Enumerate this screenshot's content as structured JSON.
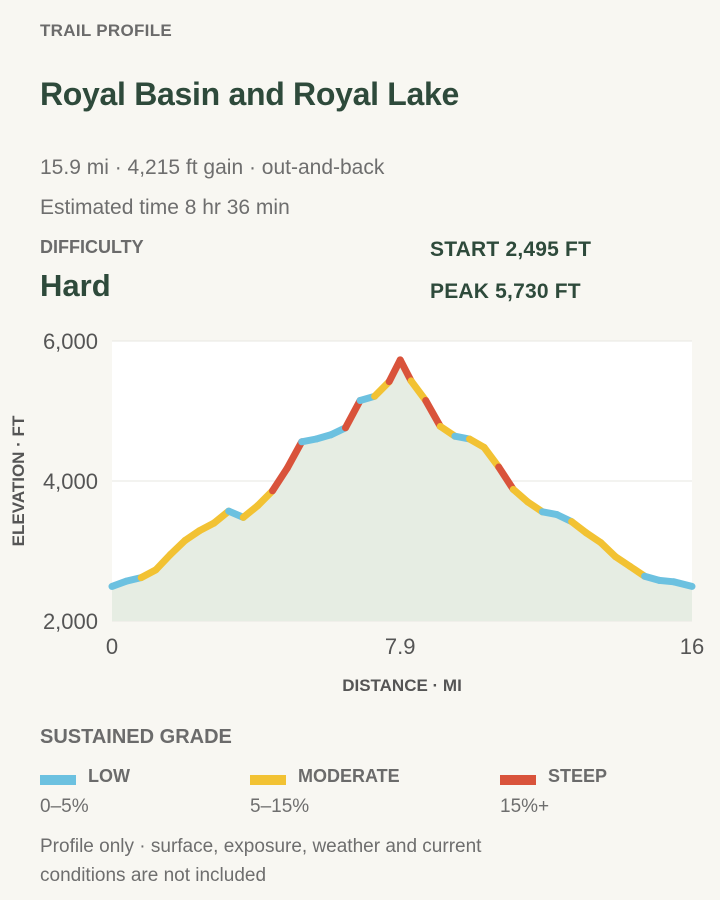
{
  "header": {
    "eyebrow": "TRAIL PROFILE",
    "title": "Royal Basin and Royal Lake",
    "summary": "15.9 mi · 4,215 ft gain · out-and-back",
    "time": "Estimated time 8 hr 36 min"
  },
  "difficulty": {
    "label": "DIFFICULTY",
    "value": "Hard"
  },
  "stats": {
    "start": "START 2,495 FT",
    "peak": "PEAK 5,730 FT"
  },
  "colors": {
    "low": "#6cc1e0",
    "moderate": "#f2c233",
    "steep": "#d9533b",
    "fill": "#e6ede3"
  },
  "chart_data": {
    "type": "area",
    "xlabel": "DISTANCE · MI",
    "ylabel": "ELEVATION · FT",
    "xlim": [
      0,
      15.9
    ],
    "ylim": [
      2000,
      6000
    ],
    "x_ticks": [
      {
        "value": 0,
        "label": "0"
      },
      {
        "value": 7.9,
        "label": "7.9"
      },
      {
        "value": 15.9,
        "label": "16"
      }
    ],
    "y_ticks": [
      {
        "value": 2000,
        "label": "2,000"
      },
      {
        "value": 4000,
        "label": "4,000"
      },
      {
        "value": 6000,
        "label": "6,000"
      }
    ],
    "grid": true,
    "series": [
      {
        "x": [
          0,
          0.4,
          0.8,
          1.2,
          1.6,
          2.0,
          2.4,
          2.8,
          3.2,
          3.6,
          4.0,
          4.4,
          4.8,
          5.2,
          5.6,
          6.0,
          6.4,
          6.8,
          7.2,
          7.6,
          7.9,
          8.2,
          8.6,
          9.0,
          9.4,
          9.8,
          10.2,
          10.6,
          11.0,
          11.4,
          11.8,
          12.2,
          12.6,
          13.0,
          13.4,
          13.8,
          14.2,
          14.6,
          15.0,
          15.4,
          15.9
        ],
        "y": [
          2495,
          2570,
          2620,
          2730,
          2950,
          3150,
          3290,
          3400,
          3570,
          3480,
          3650,
          3860,
          4180,
          4560,
          4600,
          4660,
          4760,
          5150,
          5210,
          5420,
          5730,
          5430,
          5150,
          4780,
          4640,
          4600,
          4480,
          4200,
          3880,
          3700,
          3560,
          3520,
          3420,
          3260,
          3120,
          2920,
          2780,
          2640,
          2580,
          2560,
          2495
        ]
      }
    ]
  },
  "legend": {
    "heading": "SUSTAINED GRADE",
    "items": [
      {
        "name": "LOW",
        "range": "0–5%"
      },
      {
        "name": "MODERATE",
        "range": "5–15%"
      },
      {
        "name": "STEEP",
        "range": "15%+"
      }
    ]
  },
  "footnote": "Profile only · surface, exposure, weather and current conditions are not included"
}
